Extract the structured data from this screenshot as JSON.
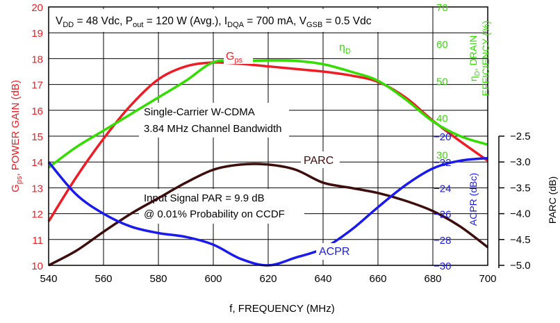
{
  "chart_data": {
    "type": "line",
    "xlabel": "f, FREQUENCY (MHz)",
    "xlim": [
      540,
      700
    ],
    "x_ticks": [
      "540",
      "560",
      "580",
      "600",
      "620",
      "640",
      "660",
      "680",
      "700"
    ],
    "header": {
      "vdd": "V",
      "vdd_sub": "DD",
      "vdd_rest": " = 48 Vdc, P",
      "pout_sub": "out",
      "pout_rest": " = 120 W (Avg.), I",
      "idqa_sub": "DQA",
      "idqa_rest": " = 700 mA, V",
      "vgsb_sub": "GSB",
      "vgsb_rest": " = 0.5 Vdc"
    },
    "axes": {
      "gain": {
        "label_main": "G",
        "label_sub": "ps",
        "label_rest": ", POWER GAIN (dB)",
        "range": [
          10,
          20
        ],
        "ticks": [
          "10",
          "11",
          "12",
          "13",
          "14",
          "15",
          "16",
          "17",
          "18",
          "19",
          "20"
        ],
        "color": "#ee1c24"
      },
      "efficiency": {
        "label_line1_main": "η",
        "label_line1_sub": "D",
        "label_line1_rest": ", DRAIN",
        "label_line2": "EFFICIENCY (%)",
        "range": [
          0,
          70
        ],
        "ticks": [
          "30",
          "40",
          "50",
          "60",
          "70"
        ],
        "color": "#33dd00"
      },
      "acpr": {
        "label": "ACPR (dBc)",
        "range": [
          -30,
          -20
        ],
        "ticks": [
          "−20",
          "−22",
          "−24",
          "−26",
          "−28",
          "−30"
        ],
        "color": "#1a1aee"
      },
      "parc": {
        "label": "PARC (dB)",
        "range": [
          -5.0,
          -2.5
        ],
        "ticks": [
          "−2.5",
          "−3.0",
          "−3.5",
          "−4.0",
          "−4.5",
          "−5.0"
        ],
        "color": "#222222"
      }
    },
    "annotations": {
      "scw_line1": "Single-Carrier W-CDMA",
      "scw_line2": "3.84 MHz Channel Bandwidth",
      "par_line1": "Input Signal PAR = 9.9 dB",
      "par_line2": "@ 0.01% Probability on CCDF"
    },
    "series": [
      {
        "name": "Gps",
        "label_main": "G",
        "label_sub": "ps",
        "axis": "gain",
        "color": "#ee1c24",
        "x": [
          540,
          550,
          560,
          570,
          580,
          590,
          600,
          610,
          620,
          630,
          640,
          650,
          660,
          670,
          680,
          690,
          700
        ],
        "y": [
          11.7,
          13.4,
          14.9,
          16.2,
          17.2,
          17.7,
          17.85,
          17.8,
          17.7,
          17.6,
          17.5,
          17.35,
          17.1,
          16.5,
          15.6,
          14.8,
          14.05
        ]
      },
      {
        "name": "ηD",
        "label_main": "η",
        "label_sub": "D",
        "axis": "efficiency",
        "color": "#33dd00",
        "x": [
          540,
          550,
          560,
          570,
          580,
          590,
          600,
          610,
          620,
          630,
          640,
          650,
          660,
          670,
          680,
          690,
          700
        ],
        "y": [
          26.5,
          32,
          36.5,
          41,
          45.5,
          50,
          55,
          55.3,
          55.5,
          55.4,
          54.5,
          52.5,
          50,
          45,
          39,
          35,
          32.7
        ]
      },
      {
        "name": "PARC",
        "label_main": "PARC",
        "axis": "parc",
        "color": "#3d0c0c",
        "x": [
          540,
          550,
          560,
          570,
          580,
          590,
          600,
          610,
          620,
          630,
          640,
          650,
          660,
          670,
          680,
          690,
          700
        ],
        "y": [
          -5.0,
          -4.72,
          -4.35,
          -4.0,
          -3.7,
          -3.4,
          -3.15,
          -3.05,
          -3.05,
          -3.15,
          -3.4,
          -3.5,
          -3.6,
          -3.75,
          -3.95,
          -4.25,
          -4.65
        ]
      },
      {
        "name": "ACPR",
        "label_main": "ACPR",
        "axis": "acpr",
        "color": "#1a1aee",
        "x": [
          540,
          550,
          560,
          570,
          580,
          590,
          600,
          610,
          620,
          630,
          640,
          650,
          660,
          670,
          680,
          690,
          700
        ],
        "y": [
          -22.0,
          -24.5,
          -26.0,
          -27.0,
          -27.5,
          -27.8,
          -28.4,
          -29.5,
          -30.0,
          -29.4,
          -28.7,
          -27.3,
          -25.5,
          -23.8,
          -22.5,
          -21.9,
          -21.7
        ]
      }
    ],
    "grid": true
  }
}
